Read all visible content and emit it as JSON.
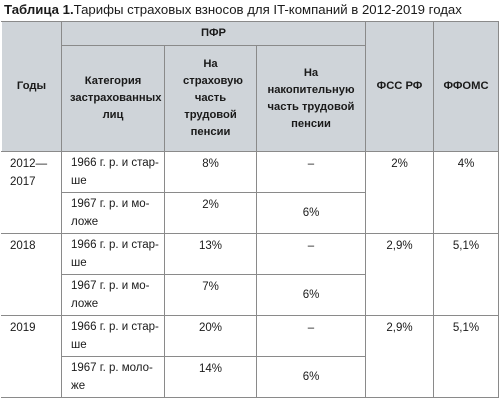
{
  "caption": {
    "label": "Таблица 1.",
    "text": "Тарифы страховых взносов для IT-компаний в 2012-2019 годах"
  },
  "header": {
    "years": "Годы",
    "pfr": "ПФР",
    "category": "Категория застрахованных лиц",
    "insurance_part": "На страховую часть трудовой пенсии",
    "funded_part": "На накопительную часть трудовой пенсии",
    "fss": "ФСС РФ",
    "ffoms": "ФФОМС"
  },
  "groups": [
    {
      "year": "2012—2017",
      "fss": "2%",
      "ffoms": "4%",
      "rows": [
        {
          "category": "1966 г. р. и стар-ше",
          "insurance": "8%",
          "funded": "–"
        },
        {
          "category": "1967 г. р. и мо-ложе",
          "insurance": "2%",
          "funded": "6%"
        }
      ]
    },
    {
      "year": "2018",
      "fss": "2,9%",
      "ffoms": "5,1%",
      "rows": [
        {
          "category": "1966 г. р. и стар-ше",
          "insurance": "13%",
          "funded": "–"
        },
        {
          "category": "1967 г. р. и мо-ложе",
          "insurance": "7%",
          "funded": "6%"
        }
      ]
    },
    {
      "year": "2019",
      "fss": "2,9%",
      "ffoms": "5,1%",
      "rows": [
        {
          "category": "1966 г. р. и стар-ше",
          "insurance": "20%",
          "funded": "–"
        },
        {
          "category": "1967 г. р. моло-же",
          "insurance": "14%",
          "funded": "6%"
        }
      ]
    }
  ]
}
